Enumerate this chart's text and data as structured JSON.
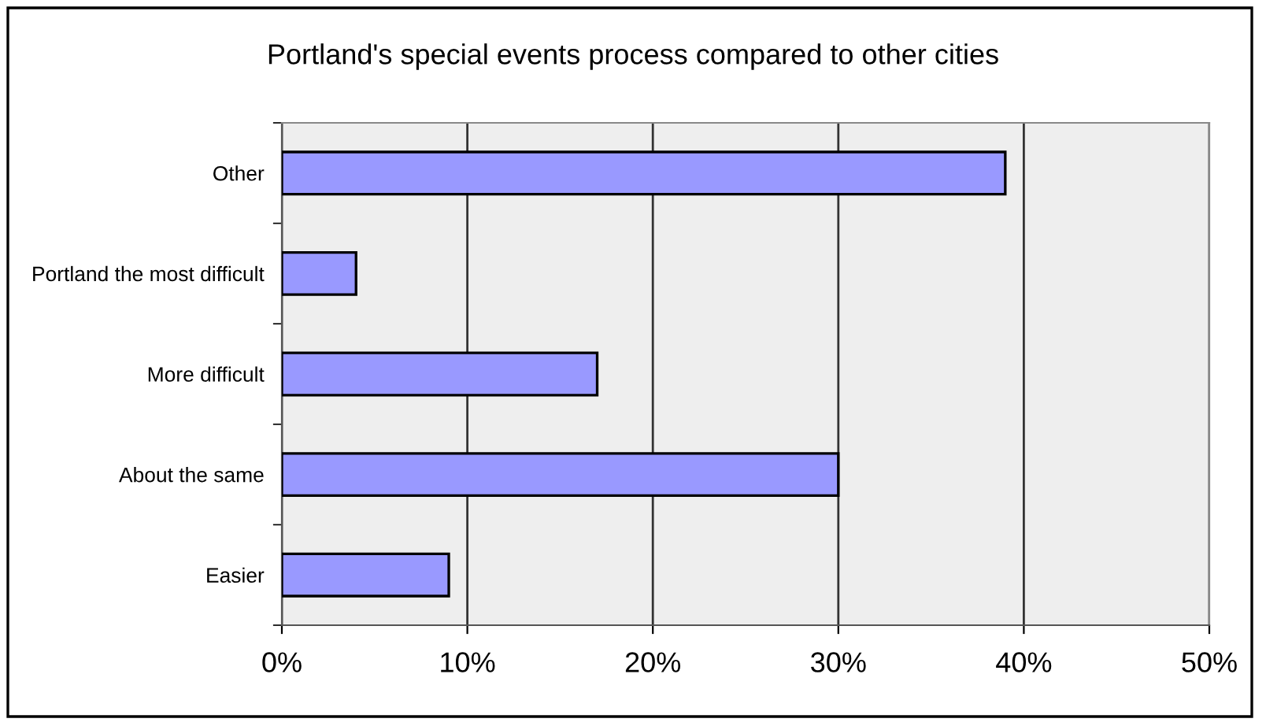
{
  "chart_data": {
    "type": "bar",
    "orientation": "horizontal",
    "title": "Portland's special events process compared to other cities",
    "categories": [
      "Other",
      "Portland the most difficult",
      "More difficult",
      "About the same",
      "Easier"
    ],
    "values": [
      39,
      4,
      17,
      30,
      9
    ],
    "color": "#9999ff",
    "xlim": [
      0,
      50
    ],
    "xticks": [
      {
        "value": 0,
        "label": "0%"
      },
      {
        "value": 10,
        "label": "10%"
      },
      {
        "value": 20,
        "label": "20%"
      },
      {
        "value": 30,
        "label": "30%"
      },
      {
        "value": 40,
        "label": "40%"
      },
      {
        "value": 50,
        "label": "50%"
      }
    ],
    "grid": "x",
    "legend": false
  }
}
